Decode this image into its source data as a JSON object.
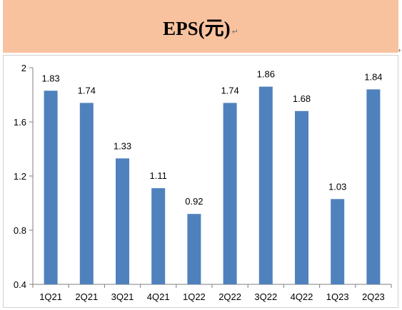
{
  "header": {
    "title": "EPS(元)",
    "return_mark": "↵",
    "corner_mark": "+"
  },
  "colors": {
    "banner": "#F9C29E",
    "bar": "#4F81BD",
    "axis": "#7f7f7f"
  },
  "chart_data": {
    "type": "bar",
    "categories": [
      "1Q21",
      "2Q21",
      "3Q21",
      "4Q21",
      "1Q22",
      "2Q22",
      "3Q22",
      "4Q22",
      "1Q23",
      "2Q23"
    ],
    "values": [
      1.83,
      1.74,
      1.33,
      1.11,
      0.92,
      1.74,
      1.86,
      1.68,
      1.03,
      1.84
    ],
    "data_labels": [
      "1.83",
      "1.74",
      "1.33",
      "1.11",
      "0.92",
      "1.74",
      "1.86",
      "1.68",
      "1.03",
      "1.84"
    ],
    "yticks": [
      "0.4",
      "0.8",
      "1.2",
      "1.6",
      "2"
    ],
    "ylim": [
      0.4,
      2
    ],
    "grid": false,
    "legend": "none"
  }
}
